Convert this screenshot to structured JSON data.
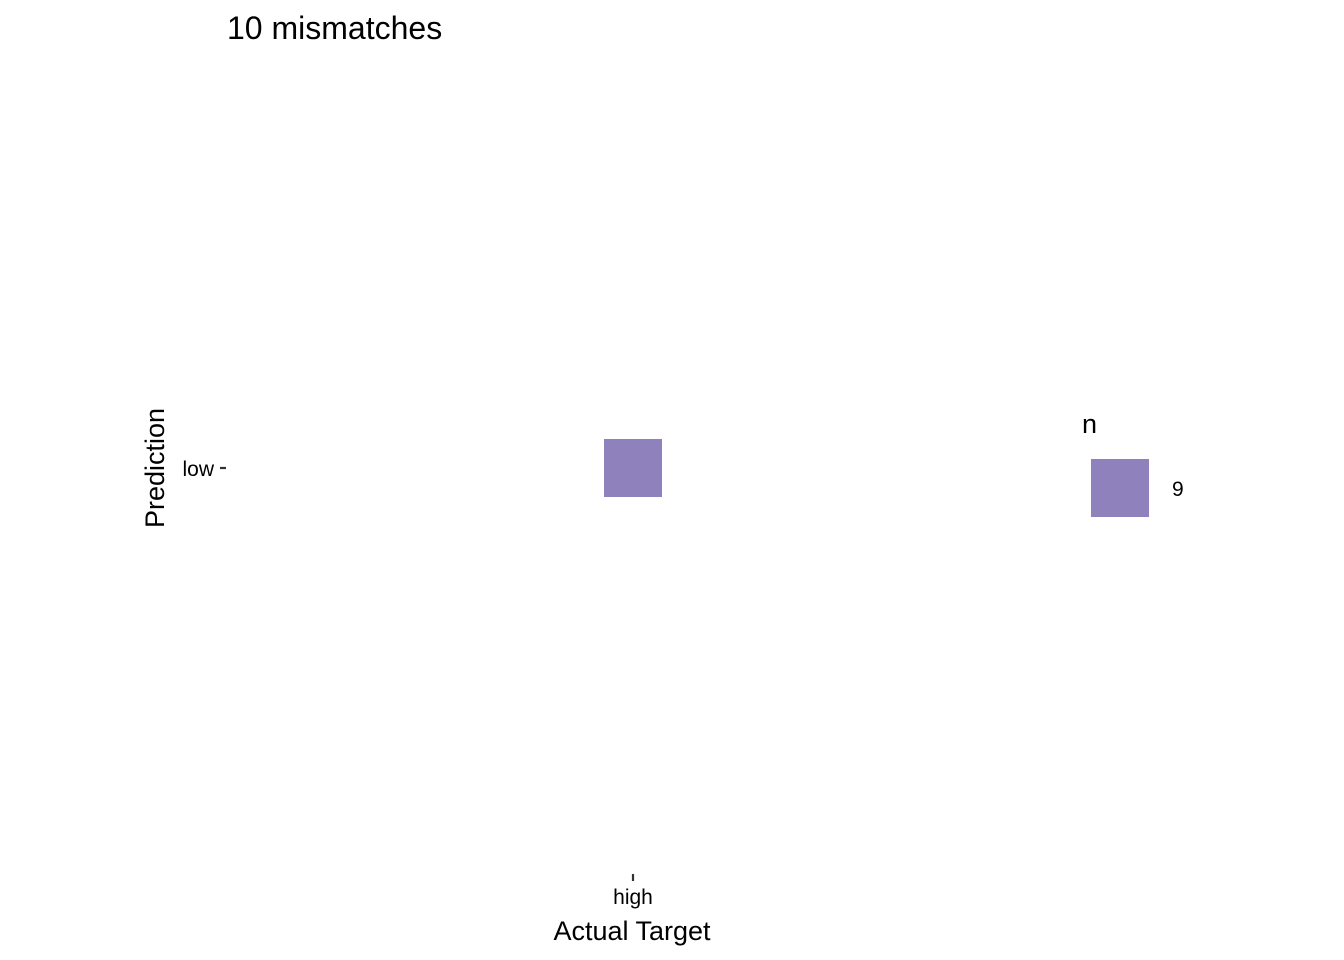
{
  "chart_data": {
    "type": "heatmap",
    "title": "10 mismatches",
    "xlabel": "Actual Target",
    "ylabel": "Prediction",
    "x_categories": [
      "high"
    ],
    "y_categories": [
      "low"
    ],
    "cells": [
      {
        "x": "high",
        "y": "low",
        "value": 9
      }
    ],
    "fill_color": "#8F82BC",
    "legend": {
      "title": "n",
      "entries": [
        {
          "label": "9",
          "value": 9,
          "color": "#8F82BC"
        }
      ],
      "placement": "right"
    },
    "grid": false
  }
}
